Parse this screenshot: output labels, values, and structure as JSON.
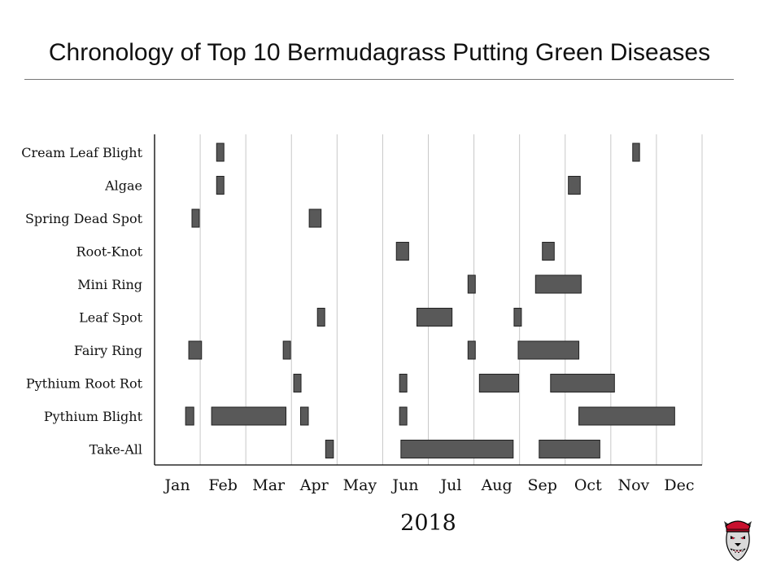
{
  "chart_data": {
    "type": "gantt",
    "title": "Chronology of Top 10 Bermudagrass Putting Green Diseases",
    "xlabel": "2018",
    "ylabel": "",
    "months": [
      "Jan",
      "Feb",
      "Mar",
      "Apr",
      "May",
      "Jun",
      "Jul",
      "Aug",
      "Sep",
      "Oct",
      "Nov",
      "Dec"
    ],
    "xlim": [
      0,
      12
    ],
    "grid": true,
    "categories": [
      "Cream Leaf Blight",
      "Algae",
      "Spring Dead Spot",
      "Root-Knot",
      "Mini Ring",
      "Leaf Spot",
      "Fairy Ring",
      "Pythium Root Rot",
      "Pythium Blight",
      "Take-All"
    ],
    "series": [
      {
        "disease": "Cream Leaf Blight",
        "periods": [
          [
            1.36,
            1.52
          ],
          [
            10.48,
            10.63
          ]
        ]
      },
      {
        "disease": "Algae",
        "periods": [
          [
            1.36,
            1.52
          ],
          [
            9.07,
            9.33
          ]
        ]
      },
      {
        "disease": "Spring Dead Spot",
        "periods": [
          [
            0.82,
            0.98
          ],
          [
            3.39,
            3.65
          ]
        ]
      },
      {
        "disease": "Root-Knot",
        "periods": [
          [
            5.3,
            5.57
          ],
          [
            8.5,
            8.76
          ]
        ]
      },
      {
        "disease": "Mini Ring",
        "periods": [
          [
            6.87,
            7.03
          ],
          [
            8.35,
            9.35
          ]
        ]
      },
      {
        "disease": "Leaf Spot",
        "periods": [
          [
            3.57,
            3.73
          ],
          [
            5.75,
            6.52
          ],
          [
            7.88,
            8.04
          ]
        ]
      },
      {
        "disease": "Fairy Ring",
        "periods": [
          [
            0.75,
            1.03
          ],
          [
            2.82,
            2.98
          ],
          [
            6.87,
            7.03
          ],
          [
            7.97,
            9.3
          ]
        ]
      },
      {
        "disease": "Pythium Root Rot",
        "periods": [
          [
            3.05,
            3.21
          ],
          [
            5.37,
            5.53
          ],
          [
            7.12,
            7.98
          ],
          [
            8.68,
            10.08
          ]
        ]
      },
      {
        "disease": "Pythium Blight",
        "periods": [
          [
            0.68,
            0.86
          ],
          [
            1.25,
            2.88
          ],
          [
            3.2,
            3.37
          ],
          [
            5.37,
            5.53
          ],
          [
            9.3,
            11.4
          ]
        ]
      },
      {
        "disease": "Take-All",
        "periods": [
          [
            3.75,
            3.92
          ],
          [
            5.4,
            7.86
          ],
          [
            8.43,
            9.76
          ]
        ]
      }
    ],
    "bar_color": "#595959"
  }
}
